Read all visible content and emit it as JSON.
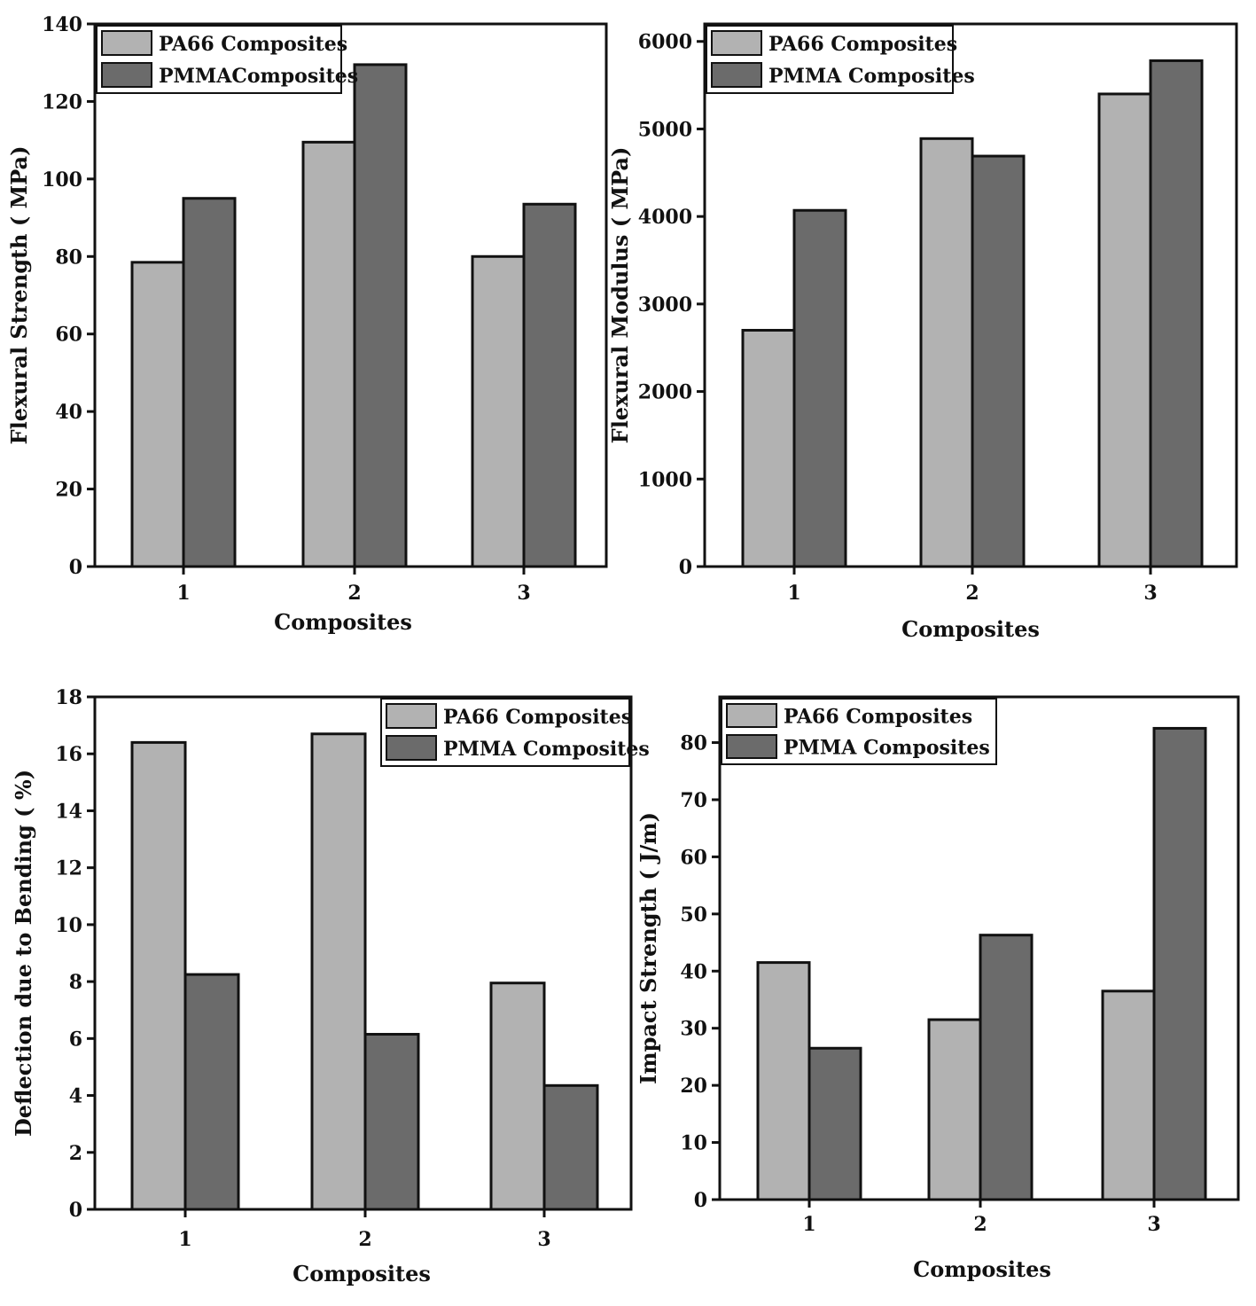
{
  "colors": {
    "pa66": "#b2b2b2",
    "pmma": "#6b6b6b",
    "stroke": "#111111"
  },
  "chart_data": [
    {
      "type": "bar",
      "categories": [
        "1",
        "2",
        "3"
      ],
      "series": [
        {
          "name": "PA66 Composites",
          "values": [
            78.5,
            109.5,
            80
          ]
        },
        {
          "name": "PMMAComposites",
          "values": [
            95,
            129.5,
            93.5
          ]
        }
      ],
      "xlabel": "Composites",
      "ylabel": "Flexural Strength ( MPa)",
      "ylim": [
        0,
        140
      ],
      "yticks": [
        "0",
        "20",
        "40",
        "60",
        "80",
        "100",
        "120",
        "140"
      ],
      "legend_position": "top-left"
    },
    {
      "type": "bar",
      "categories": [
        "1",
        "2",
        "3"
      ],
      "series": [
        {
          "name": "PA66 Composites",
          "values": [
            2700,
            4890,
            5400
          ]
        },
        {
          "name": "PMMA Composites",
          "values": [
            4070,
            4690,
            5780
          ]
        }
      ],
      "xlabel": "Composites",
      "ylabel": "Flexural Modulus ( MPa)",
      "ylim": [
        0,
        6200
      ],
      "yticks": [
        "0",
        "1000",
        "2000",
        "3000",
        "4000",
        "5000",
        "6000"
      ],
      "legend_position": "top-left"
    },
    {
      "type": "bar",
      "categories": [
        "1",
        "2",
        "3"
      ],
      "series": [
        {
          "name": "PA66 Composites",
          "values": [
            16.4,
            16.7,
            7.95
          ]
        },
        {
          "name": "PMMA Composites",
          "values": [
            8.25,
            6.15,
            4.35
          ]
        }
      ],
      "xlabel": "Composites",
      "ylabel": "Deflection due to Bending ( %)",
      "ylim": [
        0,
        18
      ],
      "yticks": [
        "0",
        "2",
        "4",
        "6",
        "8",
        "10",
        "12",
        "14",
        "16",
        "18"
      ],
      "legend_position": "top-right"
    },
    {
      "type": "bar",
      "categories": [
        "1",
        "2",
        "3"
      ],
      "series": [
        {
          "name": "PA66 Composites",
          "values": [
            41.5,
            31.5,
            36.5
          ]
        },
        {
          "name": "PMMA Composites",
          "values": [
            26.5,
            46.3,
            82.5
          ]
        }
      ],
      "xlabel": "Composites",
      "ylabel": "Impact Strength ( J/m)",
      "ylim": [
        0,
        88
      ],
      "yticks": [
        "0",
        "10",
        "20",
        "30",
        "40",
        "50",
        "60",
        "70",
        "80"
      ],
      "legend_position": "top-left"
    }
  ]
}
